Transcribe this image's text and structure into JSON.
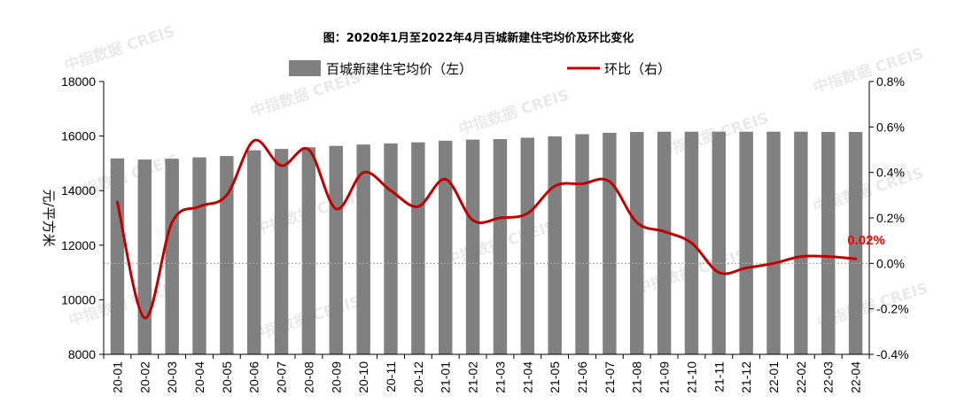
{
  "chart_data": {
    "type": "bar+line",
    "title": "图：2020年1月至2022年4月百城新建住宅均价及环比变化",
    "categories": [
      "20-01",
      "20-02",
      "20-03",
      "20-04",
      "20-05",
      "20-06",
      "20-07",
      "20-08",
      "20-09",
      "20-10",
      "20-11",
      "20-12",
      "21-01",
      "21-02",
      "21-03",
      "21-04",
      "21-05",
      "21-06",
      "21-07",
      "21-08",
      "21-09",
      "21-10",
      "21-11",
      "21-12",
      "22-01",
      "22-02",
      "22-03",
      "22-04"
    ],
    "series": [
      {
        "name": "百城新建住宅均价（左）",
        "type": "bar",
        "axis": "left",
        "color": "#808080",
        "values": [
          15180,
          15140,
          15170,
          15220,
          15270,
          15480,
          15530,
          15590,
          15640,
          15690,
          15730,
          15770,
          15830,
          15870,
          15890,
          15940,
          15990,
          16070,
          16120,
          16150,
          16160,
          16160,
          16160,
          16160,
          16160,
          16160,
          16150,
          16150
        ]
      },
      {
        "name": "环比（右）",
        "type": "line",
        "axis": "right",
        "color": "#c00000",
        "values": [
          0.27,
          -0.24,
          0.18,
          0.25,
          0.3,
          0.54,
          0.43,
          0.5,
          0.24,
          0.4,
          0.32,
          0.25,
          0.37,
          0.19,
          0.2,
          0.22,
          0.34,
          0.35,
          0.36,
          0.18,
          0.14,
          0.09,
          -0.04,
          -0.02,
          0.0,
          0.03,
          0.03,
          0.02
        ]
      }
    ],
    "y_left": {
      "label": "元/平方米",
      "min": 8000,
      "max": 18000,
      "ticks": [
        8000,
        10000,
        12000,
        14000,
        16000,
        18000
      ]
    },
    "y_right": {
      "min": -0.4,
      "max": 0.8,
      "ticks": [
        "-0.4%",
        "-0.2%",
        "0.0%",
        "0.2%",
        "0.4%",
        "0.6%",
        "0.8%"
      ]
    },
    "annotation": {
      "text": "0.02%",
      "color": "#ff0000"
    },
    "zero_line": {
      "style": "dotted",
      "color": "#a6a6a6"
    },
    "legend": "top-center",
    "watermark": "中指数据 CREIS",
    "grid": false
  }
}
